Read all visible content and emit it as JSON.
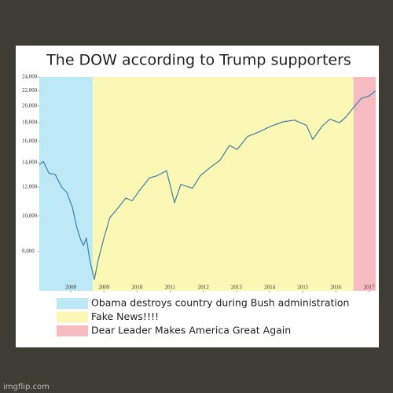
{
  "chart_data": {
    "type": "line",
    "title": "The DOW according to Trump supporters",
    "log_y": true,
    "xlim": [
      2007.05,
      2017.2
    ],
    "ylim": [
      6240,
      24000
    ],
    "xticks": [
      2008,
      2009,
      2010,
      2011,
      2012,
      2013,
      2014,
      2015,
      2016,
      2017
    ],
    "yticks": [
      {
        "value": 8000,
        "label": "8,000"
      },
      {
        "value": 10000,
        "label": "10,000"
      },
      {
        "value": 12000,
        "label": "12,000"
      },
      {
        "value": 14000,
        "label": "14,000"
      },
      {
        "value": 16000,
        "label": "16,000"
      },
      {
        "value": 18000,
        "label": "18,000"
      },
      {
        "value": 20000,
        "label": "20,000"
      },
      {
        "value": 22000,
        "label": "22,000"
      },
      {
        "value": 24000,
        "label": "24,000"
      }
    ],
    "regions": [
      {
        "name": "Obama destroys country during Bush administration",
        "color": "#bde8f5",
        "xlim": [
          2007.05,
          2008.66
        ]
      },
      {
        "name": "Fake News!!!!",
        "color": "#fbf7b4",
        "xlim": [
          2008.66,
          2016.53
        ]
      },
      {
        "name": "Dear Leader Makes America Great Again",
        "color": "#f7bcc2",
        "xlim": [
          2016.53,
          2017.2
        ]
      }
    ],
    "series": [
      {
        "color": "#3f7fa8",
        "x": [
          2007.05,
          2007.17,
          2007.34,
          2007.53,
          2007.72,
          2007.88,
          2008.05,
          2008.17,
          2008.28,
          2008.38,
          2008.47,
          2008.57,
          2008.71,
          2008.83,
          2009.0,
          2009.18,
          2009.42,
          2009.66,
          2009.85,
          2010.09,
          2010.37,
          2010.61,
          2010.89,
          2011.13,
          2011.32,
          2011.67,
          2011.91,
          2012.22,
          2012.5,
          2012.79,
          2013.02,
          2013.33,
          2013.69,
          2014.04,
          2014.4,
          2014.75,
          2015.11,
          2015.3,
          2015.58,
          2015.82,
          2016.1,
          2016.29,
          2016.53,
          2016.77,
          2017.0,
          2017.19
        ],
        "values": [
          13800,
          14100,
          13100,
          13000,
          12000,
          11600,
          10550,
          9400,
          8700,
          8300,
          8700,
          7600,
          6700,
          7600,
          8700,
          9900,
          10500,
          11200,
          11000,
          11800,
          12700,
          12900,
          13300,
          10870,
          12200,
          11900,
          12900,
          13600,
          14200,
          15600,
          15200,
          16500,
          17000,
          17600,
          18100,
          18300,
          17700,
          16200,
          17600,
          18400,
          18000,
          18600,
          19800,
          21000,
          21300,
          22000
        ]
      }
    ]
  },
  "watermark": "imgflip.com"
}
